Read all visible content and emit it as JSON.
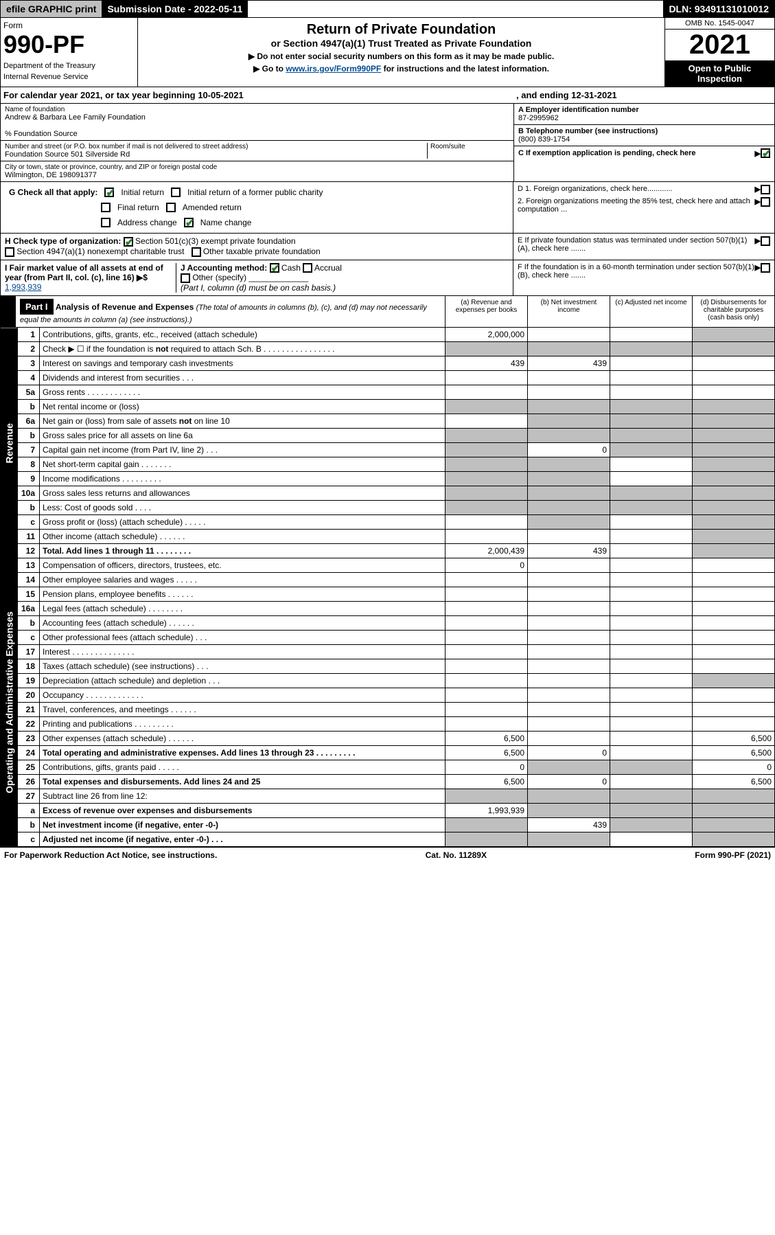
{
  "topbar": {
    "efile": "efile GRAPHIC print",
    "submission_label": "Submission Date - 2022-05-11",
    "dln": "DLN: 93491131010012"
  },
  "header": {
    "form_label": "Form",
    "form_number": "990-PF",
    "dept": "Department of the Treasury",
    "irs": "Internal Revenue Service",
    "title": "Return of Private Foundation",
    "subtitle": "or Section 4947(a)(1) Trust Treated as Private Foundation",
    "instr1": "▶ Do not enter social security numbers on this form as it may be made public.",
    "instr2_prefix": "▶ Go to ",
    "instr2_link": "www.irs.gov/Form990PF",
    "instr2_suffix": " for instructions and the latest information.",
    "omb": "OMB No. 1545-0047",
    "year": "2021",
    "open": "Open to Public Inspection"
  },
  "calendar": {
    "text": "For calendar year 2021, or tax year beginning 10-05-2021",
    "ending": ", and ending 12-31-2021"
  },
  "entity": {
    "name_label": "Name of foundation",
    "name": "Andrew & Barbara Lee Family Foundation",
    "care_of": "% Foundation Source",
    "addr_label": "Number and street (or P.O. box number if mail is not delivered to street address)",
    "addr": "Foundation Source 501 Silverside Rd",
    "room_label": "Room/suite",
    "city_label": "City or town, state or province, country, and ZIP or foreign postal code",
    "city": "Wilmington, DE  198091377",
    "ein_label": "A Employer identification number",
    "ein": "87-2995962",
    "phone_label": "B Telephone number (see instructions)",
    "phone": "(800) 839-1754",
    "c_label": "C If exemption application is pending, check here",
    "d1": "D 1. Foreign organizations, check here............",
    "d2": "2. Foreign organizations meeting the 85% test, check here and attach computation ...",
    "e": "E  If private foundation status was terminated under section 507(b)(1)(A), check here .......",
    "f": "F  If the foundation is in a 60-month termination under section 507(b)(1)(B), check here .......",
    "g_label": "G Check all that apply:",
    "g_initial": "Initial return",
    "g_initial_former": "Initial return of a former public charity",
    "g_final": "Final return",
    "g_amended": "Amended return",
    "g_address": "Address change",
    "g_name": "Name change",
    "h_label": "H Check type of organization:",
    "h_501c3": "Section 501(c)(3) exempt private foundation",
    "h_4947": "Section 4947(a)(1) nonexempt charitable trust",
    "h_other": "Other taxable private foundation",
    "i_label": "I Fair market value of all assets at end of year (from Part II, col. (c), line 16) ▶$ ",
    "i_value": "1,993,939",
    "j_label": "J Accounting method:",
    "j_cash": "Cash",
    "j_accrual": "Accrual",
    "j_other": "Other (specify)",
    "j_note": "(Part I, column (d) must be on cash basis.)"
  },
  "part1": {
    "label": "Part I",
    "title": "Analysis of Revenue and Expenses",
    "title_note": "(The total of amounts in columns (b), (c), and (d) may not necessarily equal the amounts in column (a) (see instructions).)",
    "col_a": "(a)   Revenue and expenses per books",
    "col_b": "(b)   Net investment income",
    "col_c": "(c)   Adjusted net income",
    "col_d": "(d)   Disbursements for charitable purposes (cash basis only)"
  },
  "side_labels": {
    "revenue": "Revenue",
    "expenses": "Operating and Administrative Expenses"
  },
  "rows": [
    {
      "n": "1",
      "d": "Contributions, gifts, grants, etc., received (attach schedule)",
      "a": "2,000,000",
      "b": "",
      "c": "",
      "dgrey": true
    },
    {
      "n": "2",
      "d": "Check ▶ ☐ if the foundation is not required to attach Sch. B   .  .  .  .  .  .  .  .  .  .  .  .  .  .  .  .",
      "allgrey": true
    },
    {
      "n": "3",
      "d": "Interest on savings and temporary cash investments",
      "a": "439",
      "b": "439",
      "c": "",
      "dval": ""
    },
    {
      "n": "4",
      "d": "Dividends and interest from securities   .  .  .",
      "a": "",
      "b": "",
      "c": "",
      "dval": ""
    },
    {
      "n": "5a",
      "d": "Gross rents   .  .  .  .  .  .  .  .  .  .  .  .",
      "a": "",
      "b": "",
      "c": "",
      "dval": ""
    },
    {
      "n": "b",
      "d": "Net rental income or (loss)  ",
      "a": "",
      "agrey": true,
      "bgrey": true,
      "cgrey": true,
      "dgrey": true
    },
    {
      "n": "6a",
      "d": "Net gain or (loss) from sale of assets not on line 10",
      "a": "",
      "bgrey": true,
      "cgrey": true,
      "dgrey": true
    },
    {
      "n": "b",
      "d": "Gross sales price for all assets on line 6a ",
      "agrey": true,
      "bgrey": true,
      "cgrey": true,
      "dgrey": true
    },
    {
      "n": "7",
      "d": "Capital gain net income (from Part IV, line 2)   .  .  .",
      "agrey": true,
      "b": "0",
      "cgrey": true,
      "dgrey": true
    },
    {
      "n": "8",
      "d": "Net short-term capital gain  .  .  .  .  .  .  .",
      "agrey": true,
      "bgrey": true,
      "c": "",
      "dgrey": true
    },
    {
      "n": "9",
      "d": "Income modifications  .  .  .  .  .  .  .  .  .",
      "agrey": true,
      "bgrey": true,
      "c": "",
      "dgrey": true
    },
    {
      "n": "10a",
      "d": "Gross sales less returns and allowances",
      "agrey": true,
      "bgrey": true,
      "cgrey": true,
      "dgrey": true
    },
    {
      "n": "b",
      "d": "Less: Cost of goods sold   .  .  .  .",
      "agrey": true,
      "bgrey": true,
      "cgrey": true,
      "dgrey": true
    },
    {
      "n": "c",
      "d": "Gross profit or (loss) (attach schedule)   .  .  .  .  .",
      "a": "",
      "bgrey": true,
      "c": "",
      "dgrey": true
    },
    {
      "n": "11",
      "d": "Other income (attach schedule)   .  .  .  .  .  .",
      "a": "",
      "b": "",
      "c": "",
      "dgrey": true
    },
    {
      "n": "12",
      "d": "Total. Add lines 1 through 11   .  .  .  .  .  .  .  .",
      "bold": true,
      "a": "2,000,439",
      "b": "439",
      "c": "",
      "dgrey": true
    },
    {
      "n": "13",
      "d": "Compensation of officers, directors, trustees, etc.",
      "a": "0",
      "b": "",
      "c": "",
      "dval": ""
    },
    {
      "n": "14",
      "d": "Other employee salaries and wages   .  .  .  .  .",
      "a": "",
      "b": "",
      "c": "",
      "dval": ""
    },
    {
      "n": "15",
      "d": "Pension plans, employee benefits  .  .  .  .  .  .",
      "a": "",
      "b": "",
      "c": "",
      "dval": ""
    },
    {
      "n": "16a",
      "d": "Legal fees (attach schedule)  .  .  .  .  .  .  .  .",
      "a": "",
      "b": "",
      "c": "",
      "dval": ""
    },
    {
      "n": "b",
      "d": "Accounting fees (attach schedule)  .  .  .  .  .  .",
      "a": "",
      "b": "",
      "c": "",
      "dval": ""
    },
    {
      "n": "c",
      "d": "Other professional fees (attach schedule)   .  .  .",
      "a": "",
      "b": "",
      "c": "",
      "dval": ""
    },
    {
      "n": "17",
      "d": "Interest  .  .  .  .  .  .  .  .  .  .  .  .  .  .",
      "a": "",
      "b": "",
      "c": "",
      "dval": ""
    },
    {
      "n": "18",
      "d": "Taxes (attach schedule) (see instructions)   .  .  .",
      "a": "",
      "b": "",
      "c": "",
      "dval": ""
    },
    {
      "n": "19",
      "d": "Depreciation (attach schedule) and depletion   .  .  .",
      "a": "",
      "b": "",
      "c": "",
      "dgrey": true
    },
    {
      "n": "20",
      "d": "Occupancy  .  .  .  .  .  .  .  .  .  .  .  .  .",
      "a": "",
      "b": "",
      "c": "",
      "dval": ""
    },
    {
      "n": "21",
      "d": "Travel, conferences, and meetings  .  .  .  .  .  .",
      "a": "",
      "b": "",
      "c": "",
      "dval": ""
    },
    {
      "n": "22",
      "d": "Printing and publications  .  .  .  .  .  .  .  .  .",
      "a": "",
      "b": "",
      "c": "",
      "dval": ""
    },
    {
      "n": "23",
      "d": "Other expenses (attach schedule)  .  .  .  .  .  .",
      "a": "6,500",
      "b": "",
      "c": "",
      "dval": "6,500"
    },
    {
      "n": "24",
      "d": "Total operating and administrative expenses. Add lines 13 through 23   .  .  .  .  .  .  .  .  .",
      "bold": true,
      "a": "6,500",
      "b": "0",
      "c": "",
      "dval": "6,500"
    },
    {
      "n": "25",
      "d": "Contributions, gifts, grants paid   .  .  .  .  .",
      "a": "0",
      "bgrey": true,
      "cgrey": true,
      "dval": "0"
    },
    {
      "n": "26",
      "d": "Total expenses and disbursements. Add lines 24 and 25",
      "bold": true,
      "a": "6,500",
      "b": "0",
      "c": "",
      "dval": "6,500"
    },
    {
      "n": "27",
      "d": "Subtract line 26 from line 12:",
      "agrey": true,
      "bgrey": true,
      "cgrey": true,
      "dgrey": true
    },
    {
      "n": "a",
      "d": "Excess of revenue over expenses and disbursements",
      "bold": true,
      "a": "1,993,939",
      "bgrey": true,
      "cgrey": true,
      "dgrey": true
    },
    {
      "n": "b",
      "d": "Net investment income (if negative, enter -0-)",
      "bold": true,
      "agrey": true,
      "b": "439",
      "cgrey": true,
      "dgrey": true
    },
    {
      "n": "c",
      "d": "Adjusted net income (if negative, enter -0-)   .  .  .",
      "bold": true,
      "agrey": true,
      "bgrey": true,
      "c": "",
      "dgrey": true
    }
  ],
  "footer": {
    "left": "For Paperwork Reduction Act Notice, see instructions.",
    "mid": "Cat. No. 11289X",
    "right": "Form 990-PF (2021)"
  }
}
